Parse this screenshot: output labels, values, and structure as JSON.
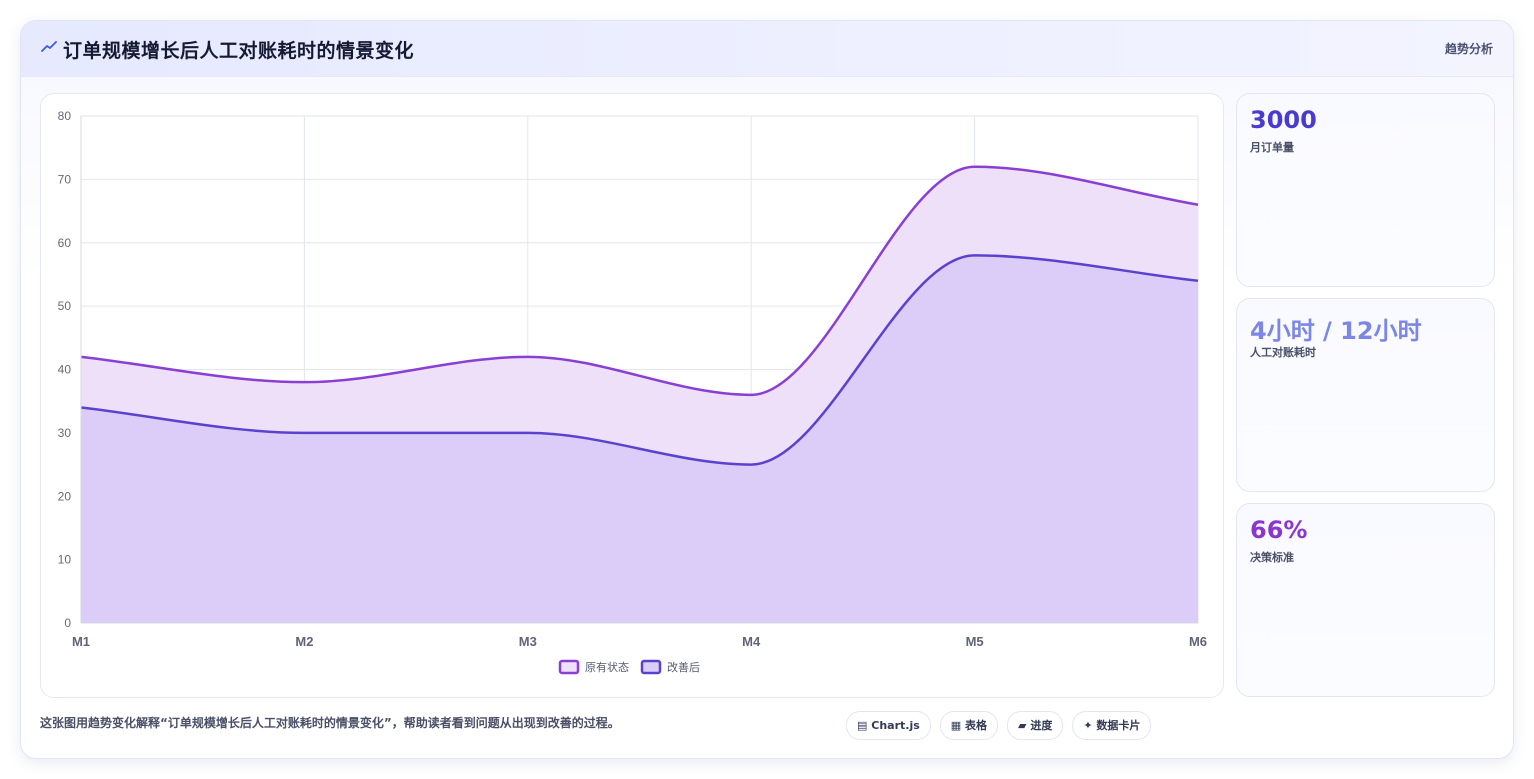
{
  "header": {
    "title": "订单规模增长后人工对账耗时的情景变化",
    "tag": "趋势分析",
    "icon": "trend-line-icon"
  },
  "chart_data": {
    "type": "area",
    "categories": [
      "M1",
      "M2",
      "M3",
      "M4",
      "M5",
      "M6"
    ],
    "series": [
      {
        "name": "原有状态",
        "values": [
          42,
          38,
          42,
          36,
          72,
          66
        ],
        "color": "#8a3fd4",
        "fill": "#efe0fa"
      },
      {
        "name": "改善后",
        "values": [
          34,
          30,
          30,
          25,
          58,
          54
        ],
        "color": "#5a42cf",
        "fill": "#dbccf8"
      }
    ],
    "ylim": [
      0,
      80
    ],
    "yticks": [
      0,
      10,
      20,
      30,
      40,
      50,
      60,
      70,
      80
    ],
    "grid": true,
    "legend": "bottom-center"
  },
  "kpis": [
    {
      "value": "3000",
      "label": "月订单量",
      "color": "#4a3ad0"
    },
    {
      "value": "4小时 / 12小时",
      "label": "人工对账耗时",
      "color": "#7b86e6"
    },
    {
      "value": "66%",
      "label": "决策标准",
      "color": "#8a36cf"
    }
  ],
  "caption": "这张图用趋势变化解释“订单规模增长后人工对账耗时的情景变化”，帮助读者看到问题从出现到改善的过程。",
  "chips": [
    {
      "icon": "▤",
      "label": "Chart.js"
    },
    {
      "icon": "▦",
      "label": "表格"
    },
    {
      "icon": "▰",
      "label": "进度"
    },
    {
      "icon": "✦",
      "label": "数据卡片"
    }
  ]
}
